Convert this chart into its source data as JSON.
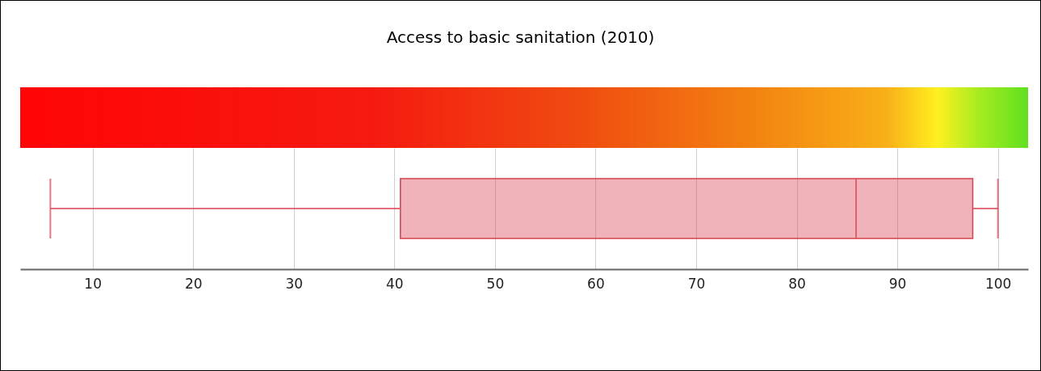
{
  "chart_data": {
    "type": "box",
    "title": "Access to basic sanitation (2010)",
    "orientation": "horizontal",
    "categories": [
      null
    ],
    "boxes": [
      {
        "low": 5.8,
        "q1": 40.6,
        "median": 85.9,
        "q3": 97.5,
        "high": 100
      }
    ],
    "colors": [
      "#d9404f"
    ],
    "xlim": [
      2.8,
      103
    ],
    "xticks": [
      10,
      20,
      30,
      40,
      50,
      60,
      70,
      80,
      90,
      100
    ],
    "grid": true
  }
}
